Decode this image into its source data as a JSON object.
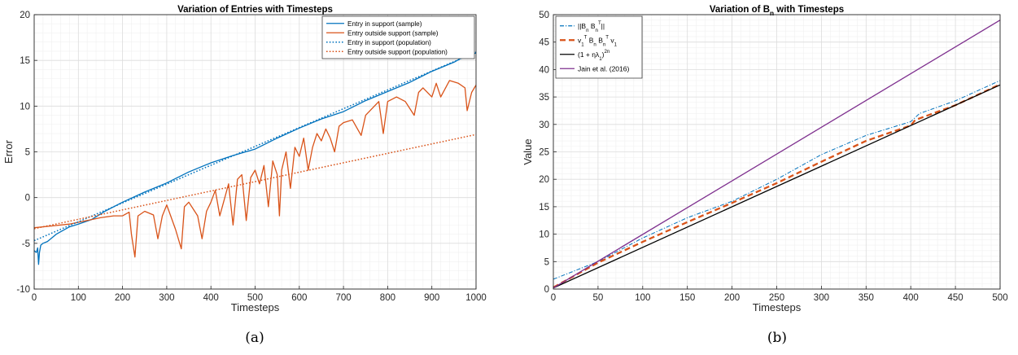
{
  "chart_data": [
    {
      "type": "line",
      "title": "Variation of Entries with Timesteps",
      "xlabel": "Timesteps",
      "ylabel": "Error",
      "xlim": [
        0,
        1000
      ],
      "ylim": [
        -10,
        20
      ],
      "xticks": [
        0,
        100,
        200,
        300,
        400,
        500,
        600,
        700,
        800,
        900,
        1000
      ],
      "yticks": [
        -10,
        -5,
        0,
        5,
        10,
        15,
        20
      ],
      "grid": true,
      "legend_position": "top-right",
      "caption": "(a)",
      "series": [
        {
          "name": "Entry in support (sample)",
          "style": "solid",
          "color": "#0072BD",
          "x": [
            0,
            5,
            8,
            10,
            12,
            15,
            20,
            30,
            50,
            80,
            100,
            130,
            160,
            200,
            250,
            300,
            350,
            400,
            450,
            500,
            550,
            600,
            650,
            700,
            750,
            800,
            850,
            900,
            950,
            980,
            1000
          ],
          "y": [
            -5.8,
            -6.0,
            -5.5,
            -7.3,
            -6.0,
            -5.2,
            -5.0,
            -4.8,
            -4.0,
            -3.2,
            -2.9,
            -2.4,
            -1.5,
            -0.5,
            0.6,
            1.6,
            2.8,
            3.8,
            4.6,
            5.3,
            6.5,
            7.6,
            8.6,
            9.4,
            10.6,
            11.6,
            12.6,
            13.8,
            14.8,
            15.6,
            15.8
          ]
        },
        {
          "name": "Entry outside support (sample)",
          "style": "solid",
          "color": "#D95319",
          "x": [
            0,
            40,
            80,
            120,
            150,
            180,
            200,
            215,
            220,
            228,
            235,
            250,
            270,
            280,
            290,
            300,
            320,
            333,
            340,
            350,
            370,
            380,
            390,
            400,
            410,
            420,
            440,
            450,
            460,
            470,
            480,
            490,
            500,
            510,
            520,
            530,
            540,
            550,
            555,
            560,
            570,
            580,
            590,
            600,
            610,
            620,
            630,
            640,
            650,
            660,
            670,
            680,
            690,
            700,
            720,
            740,
            750,
            760,
            780,
            790,
            800,
            820,
            840,
            860,
            870,
            880,
            900,
            910,
            920,
            940,
            960,
            975,
            980,
            990,
            1000
          ],
          "y": [
            -3.3,
            -3.1,
            -2.9,
            -2.5,
            -2.2,
            -2.0,
            -2.0,
            -1.6,
            -4.0,
            -6.5,
            -2.0,
            -1.5,
            -1.9,
            -4.5,
            -2.0,
            -0.8,
            -3.5,
            -5.6,
            -1.0,
            -0.5,
            -2.0,
            -4.5,
            -1.5,
            -0.5,
            0.8,
            -2.0,
            1.5,
            -3.0,
            2.0,
            2.5,
            -2.5,
            2.2,
            3.0,
            1.5,
            3.5,
            -1.0,
            4.0,
            2.5,
            -2.0,
            3.0,
            5.0,
            1.0,
            5.5,
            4.5,
            6.5,
            3.0,
            5.5,
            7.0,
            6.2,
            7.5,
            6.5,
            5.0,
            7.8,
            8.2,
            8.5,
            6.8,
            9.0,
            9.5,
            10.5,
            7.0,
            10.5,
            11.0,
            10.5,
            9.0,
            11.5,
            12.0,
            11.0,
            12.5,
            11.0,
            12.8,
            12.5,
            12.0,
            9.5,
            11.5,
            12.3
          ]
        },
        {
          "name": "Entry in support (population)",
          "style": "dotted",
          "color": "#0072BD",
          "x": [
            0,
            1000
          ],
          "y": [
            -4.7,
            15.9
          ]
        },
        {
          "name": "Entry outside support (population)",
          "style": "dotted",
          "color": "#D95319",
          "x": [
            0,
            1000
          ],
          "y": [
            -3.4,
            6.9
          ]
        }
      ]
    },
    {
      "type": "line",
      "title": "Variation of B_n with Timesteps",
      "xlabel": "Timesteps",
      "ylabel": "Value",
      "xlim": [
        0,
        500
      ],
      "ylim": [
        0,
        50
      ],
      "xticks": [
        0,
        50,
        100,
        150,
        200,
        250,
        300,
        350,
        400,
        450,
        500
      ],
      "yticks": [
        0,
        5,
        10,
        15,
        20,
        25,
        30,
        35,
        40,
        45,
        50
      ],
      "grid": true,
      "legend_position": "top-left",
      "caption": "(b)",
      "series": [
        {
          "name": "||B_n B_n^T||",
          "style": "dashdot",
          "color": "#0072BD",
          "x": [
            0,
            50,
            100,
            150,
            200,
            250,
            300,
            350,
            400,
            410,
            450,
            500
          ],
          "y": [
            1.8,
            5.0,
            9.3,
            13.0,
            16.0,
            20.0,
            24.5,
            28.0,
            30.5,
            32.0,
            34.3,
            38.0
          ]
        },
        {
          "name": "v_1^T B_n B_n^T v_1",
          "style": "dashed",
          "color": "#D95319",
          "x": [
            0,
            50,
            100,
            150,
            200,
            250,
            300,
            350,
            400,
            405,
            450,
            500
          ],
          "y": [
            0.3,
            4.8,
            8.6,
            12.2,
            15.7,
            19.3,
            23.2,
            27.0,
            29.8,
            30.8,
            33.5,
            37.3
          ]
        },
        {
          "name": "(1 + ηλ_1)^{2n}",
          "style": "solid",
          "color": "#000000",
          "x": [
            0,
            500
          ],
          "y": [
            0.2,
            37.2
          ]
        },
        {
          "name": "Jain et al. (2016)",
          "style": "solid",
          "color": "#7E2F8E",
          "x": [
            0,
            500
          ],
          "y": [
            0.2,
            49.0
          ]
        }
      ]
    }
  ]
}
